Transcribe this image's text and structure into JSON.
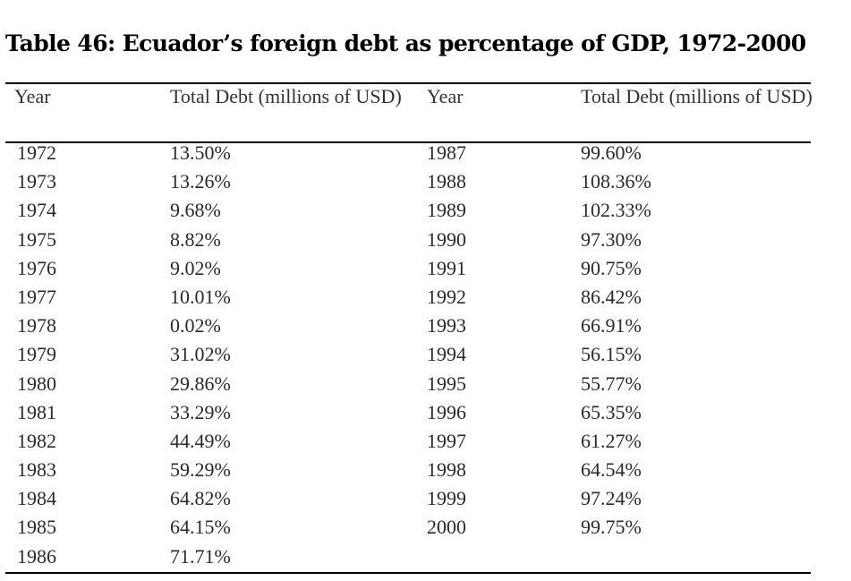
{
  "title": "Table 46: Ecuador’s foreign debt as percentage of GDP, 1972-2000",
  "headers": [
    "Year",
    "Total Debt (millions of USD)",
    "Year",
    "Total Debt (millions of USD)"
  ],
  "rows": [
    [
      "1972",
      "13.50%",
      "1987",
      "99.60%"
    ],
    [
      "1973",
      "13.26%",
      "1988",
      "108.36%"
    ],
    [
      "1974",
      "9.68%",
      "1989",
      "102.33%"
    ],
    [
      "1975",
      "8.82%",
      "1990",
      "97.30%"
    ],
    [
      "1976",
      "9.02%",
      "1991",
      "90.75%"
    ],
    [
      "1977",
      "10.01%",
      "1992",
      "86.42%"
    ],
    [
      "1978",
      "0.02%",
      "1993",
      "66.91%"
    ],
    [
      "1979",
      "31.02%",
      "1994",
      "56.15%"
    ],
    [
      "1980",
      "29.86%",
      "1995",
      "55.77%"
    ],
    [
      "1981",
      "33.29%",
      "1996",
      "65.35%"
    ],
    [
      "1982",
      "44.49%",
      "1997",
      "61.27%"
    ],
    [
      "1983",
      "59.29%",
      "1998",
      "64.54%"
    ],
    [
      "1984",
      "64.82%",
      "1999",
      "97.24%"
    ],
    [
      "1985",
      "64.15%",
      "2000",
      "99.75%"
    ],
    [
      "1986",
      "71.71%",
      "",
      ""
    ]
  ]
}
